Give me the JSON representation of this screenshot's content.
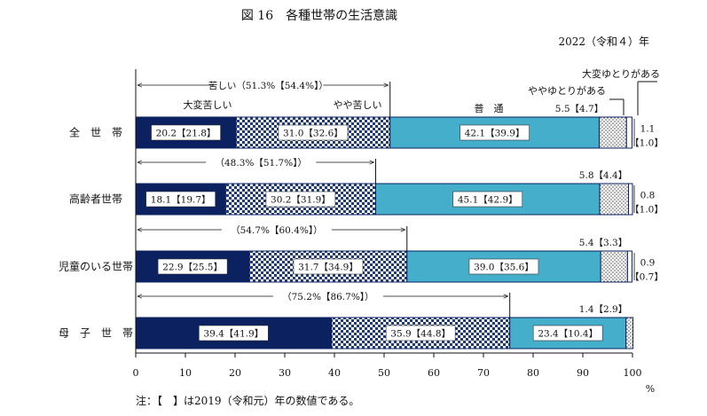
{
  "chart_data": {
    "type": "bar",
    "stacked": true,
    "orientation": "horizontal",
    "title": "図 16　各種世帯の生活意識",
    "subtitle": "2022（令和４）年",
    "note": "注：【　】は2019（令和元）年の数値である。",
    "x_unit": "%",
    "xlim": [
      0,
      100
    ],
    "x_ticks": [
      "0",
      "10",
      "20",
      "30",
      "40",
      "50",
      "60",
      "70",
      "80",
      "90",
      "100"
    ],
    "grid": false,
    "categories": [
      "全　世　帯",
      "高齢者世帯",
      "児童のいる世帯",
      "母　子　世　帯"
    ],
    "series": [
      {
        "name": "大変苦しい",
        "values": [
          20.2,
          18.1,
          22.9,
          39.4
        ],
        "prev": [
          21.8,
          19.7,
          25.5,
          41.9
        ],
        "labels": [
          "20.2【21.8】",
          "18.1【19.7】",
          "22.9【25.5】",
          "39.4【41.9】"
        ],
        "color": "#0b2160"
      },
      {
        "name": "やや苦しい",
        "values": [
          31.0,
          30.2,
          31.7,
          35.9
        ],
        "prev": [
          32.6,
          31.9,
          34.9,
          44.8
        ],
        "labels": [
          "31.0【32.6】",
          "30.2【31.9】",
          "31.7【34.9】",
          "35.9【44.8】"
        ],
        "color": "#1f3a78"
      },
      {
        "name": "普　通",
        "values": [
          42.1,
          45.1,
          39.0,
          23.4
        ],
        "prev": [
          39.9,
          42.9,
          35.6,
          10.4
        ],
        "labels": [
          "42.1【39.9】",
          "45.1【42.9】",
          "39.0【35.6】",
          "23.4【10.4】"
        ],
        "color": "#45aecb"
      },
      {
        "name": "ややゆとりがある",
        "values": [
          5.5,
          5.8,
          5.4,
          1.4
        ],
        "prev": [
          4.7,
          4.4,
          3.3,
          2.9
        ],
        "labels": [
          "5.5【4.7】",
          "5.8【4.4】",
          "5.4【3.3】",
          "1.4【2.9】"
        ],
        "color": "#dce9ef"
      },
      {
        "name": "大変ゆとりがある",
        "values": [
          1.1,
          0.8,
          0.9,
          0.0
        ],
        "prev": [
          1.0,
          1.0,
          0.7,
          0.0
        ],
        "labels_a": [
          "1.1",
          "0.8",
          "0.9",
          ""
        ],
        "labels_b": [
          "【1.0】",
          "【1.0】",
          "【0.7】",
          ""
        ],
        "color": "#ffffff"
      }
    ],
    "hardship_total_labels": [
      "苦しい（51.3%【54.4%】）",
      "（48.3%【51.7%】）",
      "（54.7%【60.4%】）",
      "（75.2%【86.7%】）"
    ]
  }
}
